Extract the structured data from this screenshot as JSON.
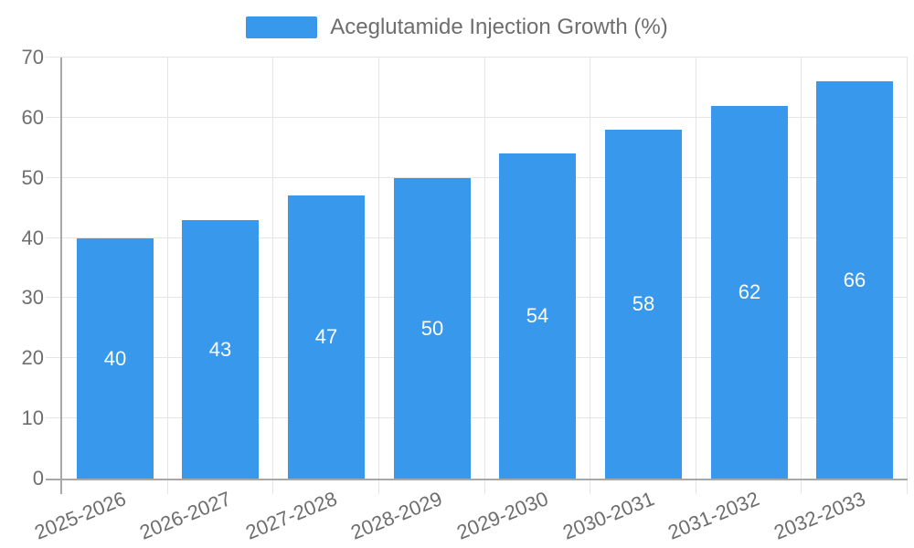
{
  "chart_data": {
    "type": "bar",
    "title": "Aceglutamide Injection Growth (%)",
    "categories": [
      "2025-2026",
      "2026-2027",
      "2027-2028",
      "2028-2029",
      "2029-2030",
      "2030-2031",
      "2031-2032",
      "2032-2033"
    ],
    "values": [
      40,
      43,
      47,
      50,
      54,
      58,
      62,
      66
    ],
    "value_labels": [
      "40",
      "43",
      "47",
      "50",
      "54",
      "58",
      "62",
      "66"
    ],
    "xlabel": "",
    "ylabel": "",
    "ylim": [
      0,
      70
    ],
    "yticks": [
      0,
      10,
      20,
      30,
      40,
      50,
      60,
      70
    ],
    "grid": true,
    "legend_position": "top-center",
    "colors": {
      "bar": "#3898ec",
      "bar_value_text": "#ffffff",
      "axis_text": "#6e6e6e",
      "legend_text": "#6e6e6e",
      "gridline": "#e5e5e5",
      "axis_line": "#a8a8a8",
      "background": "#ffffff"
    }
  }
}
